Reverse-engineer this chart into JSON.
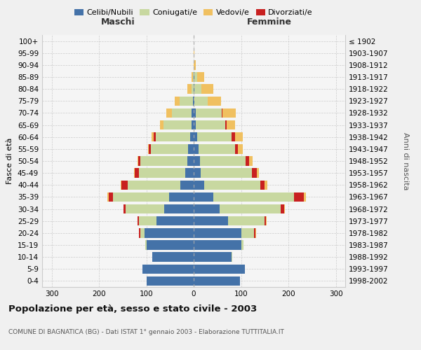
{
  "age_groups": [
    "0-4",
    "5-9",
    "10-14",
    "15-19",
    "20-24",
    "25-29",
    "30-34",
    "35-39",
    "40-44",
    "45-49",
    "50-54",
    "55-59",
    "60-64",
    "65-69",
    "70-74",
    "75-79",
    "80-84",
    "85-89",
    "90-94",
    "95-99",
    "100+"
  ],
  "birth_years": [
    "1998-2002",
    "1993-1997",
    "1988-1992",
    "1983-1987",
    "1978-1982",
    "1973-1977",
    "1968-1972",
    "1963-1967",
    "1958-1962",
    "1953-1957",
    "1948-1952",
    "1943-1947",
    "1938-1942",
    "1933-1937",
    "1928-1932",
    "1923-1927",
    "1918-1922",
    "1913-1917",
    "1908-1912",
    "1903-1907",
    "≤ 1902"
  ],
  "maschi": {
    "celibi": [
      100,
      108,
      88,
      100,
      103,
      78,
      62,
      52,
      28,
      18,
      14,
      12,
      8,
      5,
      4,
      2,
      0,
      0,
      0,
      0,
      0
    ],
    "coniugati": [
      0,
      0,
      0,
      2,
      10,
      38,
      82,
      118,
      112,
      98,
      98,
      78,
      72,
      58,
      42,
      28,
      5,
      2,
      0,
      0,
      0
    ],
    "vedovi": [
      0,
      0,
      0,
      0,
      0,
      0,
      0,
      2,
      2,
      2,
      2,
      2,
      4,
      8,
      12,
      10,
      8,
      2,
      0,
      0,
      0
    ],
    "divorziati": [
      0,
      0,
      0,
      0,
      2,
      2,
      4,
      10,
      12,
      8,
      5,
      5,
      5,
      0,
      0,
      0,
      0,
      0,
      0,
      0,
      0
    ]
  },
  "femmine": {
    "nubili": [
      98,
      108,
      80,
      100,
      100,
      72,
      55,
      42,
      22,
      15,
      14,
      10,
      8,
      5,
      4,
      2,
      2,
      2,
      0,
      0,
      0
    ],
    "coniugate": [
      0,
      0,
      2,
      5,
      28,
      78,
      128,
      170,
      118,
      108,
      95,
      78,
      72,
      62,
      55,
      28,
      14,
      5,
      0,
      0,
      0
    ],
    "vedove": [
      0,
      0,
      0,
      0,
      2,
      2,
      2,
      5,
      5,
      5,
      8,
      10,
      15,
      18,
      28,
      28,
      25,
      15,
      5,
      2,
      0
    ],
    "divorziate": [
      0,
      0,
      0,
      0,
      2,
      2,
      8,
      20,
      10,
      10,
      8,
      5,
      8,
      2,
      2,
      0,
      0,
      0,
      0,
      0,
      0
    ]
  },
  "colors": {
    "celibi": "#4472a8",
    "coniugati": "#c8d8a0",
    "vedovi": "#f0c060",
    "divorziati": "#c82020"
  },
  "xlim": 320,
  "title": "Popolazione per età, sesso e stato civile - 2003",
  "subtitle": "COMUNE DI BAGNATICA (BG) - Dati ISTAT 1° gennaio 2003 - Elaborazione TUTTITALIA.IT",
  "ylabel_left": "Fasce di età",
  "ylabel_right": "Anni di nascita",
  "xlabel_left": "Maschi",
  "xlabel_right": "Femmine",
  "bg_color": "#f5f5f5",
  "grid_color": "#cccccc",
  "legend_labels": [
    "Celibi/Nubili",
    "Coniugati/e",
    "Vedovi/e",
    "Divorziati/e"
  ]
}
